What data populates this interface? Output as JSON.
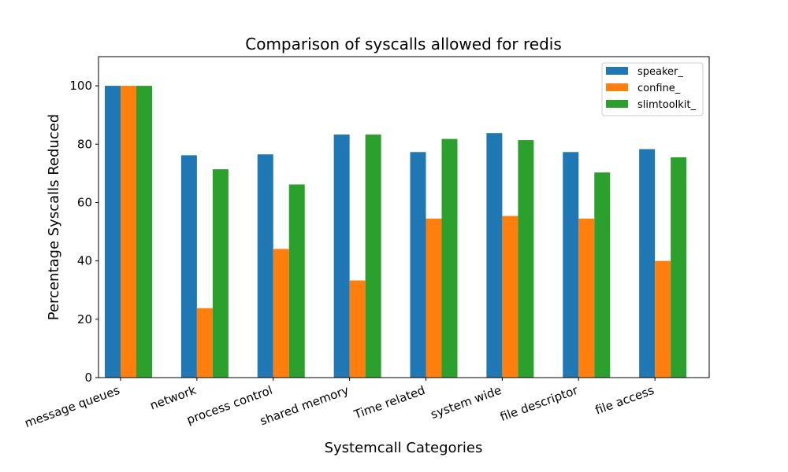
{
  "chart_data": {
    "type": "bar",
    "title": "Comparison of syscalls allowed for redis",
    "xlabel": "Systemcall Categories",
    "ylabel": "Percentage Syscalls Reduced",
    "ylim": [
      0,
      110
    ],
    "yticks": [
      0,
      20,
      40,
      60,
      80,
      100
    ],
    "grid": false,
    "legend_position": "top-right",
    "categories": [
      "message queues",
      "network",
      "process control",
      "shared memory",
      "Time related",
      "system wide",
      "file descriptor",
      "file access"
    ],
    "series": [
      {
        "name": "speaker_",
        "color": "#1f77b4",
        "values": [
          100,
          76.2,
          76.5,
          83.3,
          77.3,
          83.8,
          77.3,
          78.3
        ]
      },
      {
        "name": "confine_",
        "color": "#ff7f0e",
        "values": [
          100,
          23.8,
          44.1,
          33.3,
          54.5,
          55.4,
          54.5,
          40.0
        ]
      },
      {
        "name": "slimtoolkit_",
        "color": "#2ca02c",
        "values": [
          100,
          71.4,
          66.2,
          83.3,
          81.8,
          81.4,
          70.3,
          75.5
        ]
      }
    ]
  }
}
